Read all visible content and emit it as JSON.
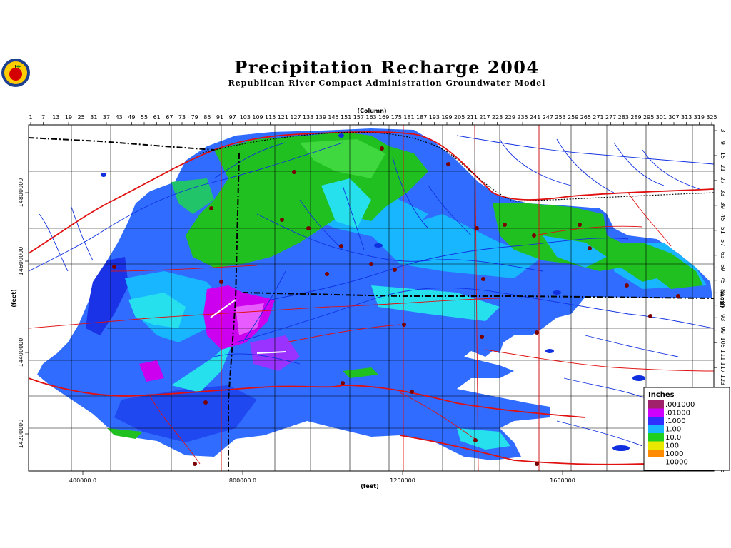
{
  "title": "Precipitation Recharge 2004",
  "subtitle": "Republican River Compact Administration Groundwater Model",
  "logo": {
    "icon": "apple-seal-icon",
    "colors": [
      "#1d3f8f",
      "#ffcc00",
      "#d40000"
    ]
  },
  "top_axis": {
    "label": "(Column)",
    "ticks": [
      "1",
      "7",
      "13",
      "19",
      "25",
      "31",
      "37",
      "43",
      "49",
      "55",
      "61",
      "67",
      "73",
      "79",
      "85",
      "91",
      "97",
      "103",
      "109",
      "115",
      "121",
      "127",
      "133",
      "139",
      "145",
      "151",
      "157",
      "163",
      "169",
      "175",
      "181",
      "187",
      "193",
      "199",
      "205",
      "211",
      "217",
      "223",
      "229",
      "235",
      "241",
      "247",
      "253",
      "259",
      "265",
      "271",
      "277",
      "283",
      "289",
      "295",
      "301",
      "307",
      "313",
      "319",
      "325"
    ]
  },
  "right_axis": {
    "label": "(Row)",
    "ticks": [
      "3",
      "9",
      "15",
      "21",
      "27",
      "33",
      "39",
      "45",
      "51",
      "57",
      "63",
      "69",
      "75",
      "81",
      "87",
      "93",
      "99",
      "105",
      "111",
      "117",
      "123",
      "129",
      "135",
      "141",
      "147",
      "153",
      "159",
      "165"
    ]
  },
  "bottom_axis": {
    "label": "(feet)",
    "ticks": [
      "400000.0",
      "800000.0",
      "1200000",
      "1600000"
    ]
  },
  "left_axis": {
    "label": "(feet)",
    "ticks": [
      "14800000",
      "14600000",
      "14400000",
      "14200000"
    ]
  },
  "legend": {
    "title": "Inches",
    "items": [
      {
        "label": ".001000",
        "color": "#a0226a"
      },
      {
        "label": ".01000",
        "color": "#d000ff"
      },
      {
        "label": ".1000",
        "color": "#2f2fff"
      },
      {
        "label": "1.00",
        "color": "#18b6ff"
      },
      {
        "label": "10.0",
        "color": "#20d020"
      },
      {
        "label": "100",
        "color": "#e8e800"
      },
      {
        "label": "1000",
        "color": "#ff8c00"
      },
      {
        "label": "10000",
        "color": "#ffffff"
      }
    ]
  },
  "colors": {
    "roads": "#e01010",
    "rivers": "#1030e0",
    "boundaries": "#000000",
    "counties": "#000000"
  }
}
